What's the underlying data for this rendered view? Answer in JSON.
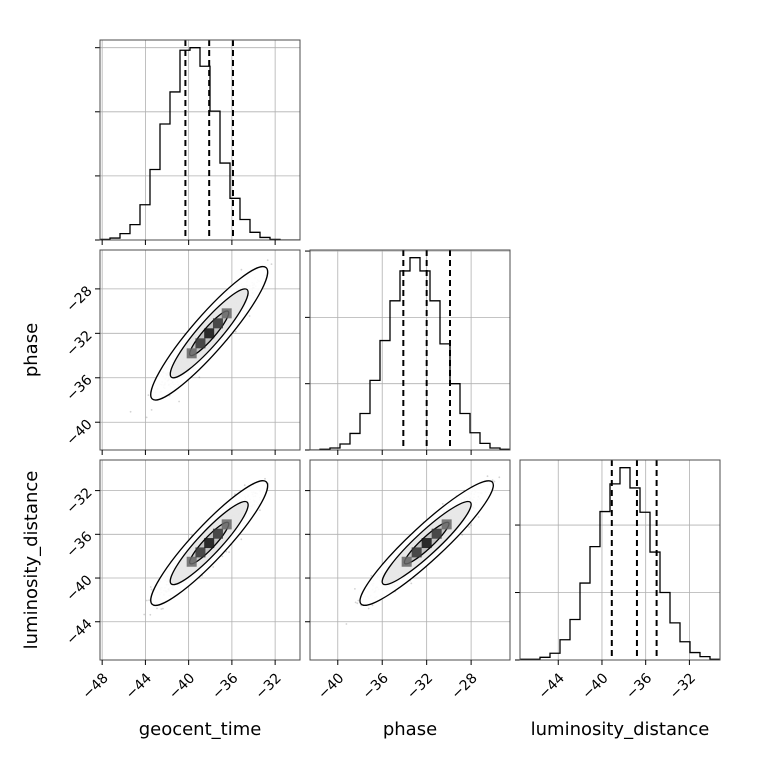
{
  "chart_data": {
    "type": "corner",
    "parameters": [
      "geocent_time",
      "phase",
      "luminosity_distance"
    ],
    "tick_labels": {
      "geocent_time": [
        "−48",
        "−44",
        "−40",
        "−36",
        "−32"
      ],
      "phase": [
        "−40",
        "−36",
        "−32",
        "−28"
      ],
      "luminosity_distance": [
        "−44",
        "−40",
        "−36",
        "−32"
      ]
    },
    "tick_values": {
      "geocent_time": [
        -48,
        -44,
        -40,
        -36,
        -32
      ],
      "phase": [
        -40,
        -36,
        -32,
        -28
      ],
      "luminosity_distance": [
        -44,
        -40,
        -36,
        -32
      ]
    },
    "ranges": {
      "geocent_time": [
        -48.2,
        -29.7
      ],
      "phase": [
        -42.5,
        -24.5
      ],
      "luminosity_distance": [
        -47.5,
        -29.2
      ]
    },
    "histograms": {
      "geocent_time": {
        "bin_edges": [
          -48.2,
          -47.275,
          -46.35,
          -45.425,
          -44.5,
          -43.575,
          -42.65,
          -41.725,
          -40.8,
          -39.875,
          -38.95,
          -38.025,
          -37.1,
          -36.175,
          -35.25,
          -34.325,
          -33.4,
          -32.475,
          -31.55,
          -30.625,
          -29.7
        ],
        "counts": [
          1,
          3,
          10,
          24,
          55,
          110,
          181,
          231,
          296,
          300,
          271,
          201,
          120,
          65,
          32,
          12,
          4,
          1,
          0,
          0
        ]
      },
      "phase": {
        "bin_edges": [
          -42.5,
          -41.6,
          -40.7,
          -39.8,
          -38.9,
          -38.0,
          -37.1,
          -36.2,
          -35.3,
          -34.4,
          -33.5,
          -32.6,
          -31.7,
          -30.8,
          -29.9,
          -29.0,
          -28.1,
          -27.2,
          -26.3,
          -25.4,
          -24.5
        ],
        "counts": [
          0,
          1,
          3,
          9,
          25,
          55,
          105,
          165,
          225,
          270,
          290,
          270,
          225,
          160,
          100,
          55,
          26,
          10,
          3,
          1
        ]
      },
      "luminosity_distance": {
        "bin_edges": [
          -47.5,
          -46.585,
          -45.67,
          -44.755,
          -43.84,
          -42.925,
          -42.01,
          -41.095,
          -40.18,
          -39.265,
          -38.35,
          -37.435,
          -36.52,
          -35.605,
          -34.69,
          -33.775,
          -32.86,
          -31.945,
          -31.03,
          -30.115,
          -29.2
        ],
        "counts": [
          1,
          1,
          4,
          10,
          30,
          60,
          114,
          168,
          220,
          261,
          285,
          255,
          219,
          160,
          100,
          55,
          27,
          11,
          5,
          1
        ]
      }
    },
    "quantile_lines": {
      "geocent_time": [
        -40.3,
        -38.1,
        -35.9
      ],
      "phase": [
        -34.1,
        -32.0,
        -29.9
      ],
      "luminosity_distance": [
        -39.1,
        -36.8,
        -35.0
      ]
    },
    "pairs": [
      {
        "x": "geocent_time",
        "y": "phase",
        "center": [
          -38.1,
          -32.0
        ],
        "sd": [
          1.8,
          2.0
        ],
        "corr": 0.92
      },
      {
        "x": "geocent_time",
        "y": "luminosity_distance",
        "center": [
          -38.1,
          -36.8
        ],
        "sd": [
          1.8,
          1.9
        ],
        "corr": 0.92
      },
      {
        "x": "phase",
        "y": "luminosity_distance",
        "center": [
          -32.0,
          -36.8
        ],
        "sd": [
          2.0,
          1.9
        ],
        "corr": 0.93
      }
    ],
    "contour_levels": [
      "39%",
      "86%",
      "99%"
    ],
    "grid": true,
    "colors": {
      "line": "#000000",
      "grid": "#b0b0b0",
      "scatter": "#808080",
      "contour_fill_outer": "#ffffff",
      "contour_fill_inner": "#e8e8e8"
    }
  }
}
